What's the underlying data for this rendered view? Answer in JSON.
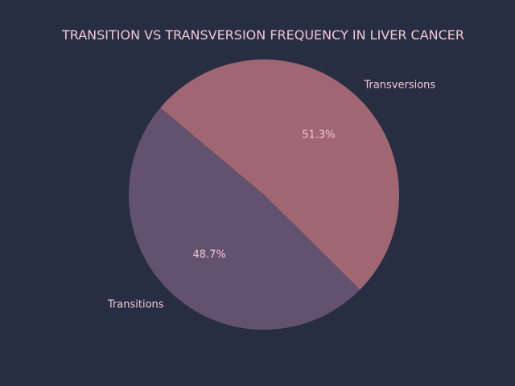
{
  "chart_data": {
    "type": "pie",
    "title": "TRANSITION VS TRANSVERSION FREQUENCY IN LIVER CANCER",
    "categories": [
      "Transitions",
      "Transversions"
    ],
    "values": [
      48.7,
      51.3
    ],
    "percent_labels": [
      "48.7%",
      "51.3%"
    ],
    "colors": [
      "#625270",
      "#a06772"
    ],
    "start_angle_deg": 140,
    "legend": "none"
  },
  "colors": {
    "background": "#282e42",
    "text": "#f3c6d6"
  }
}
